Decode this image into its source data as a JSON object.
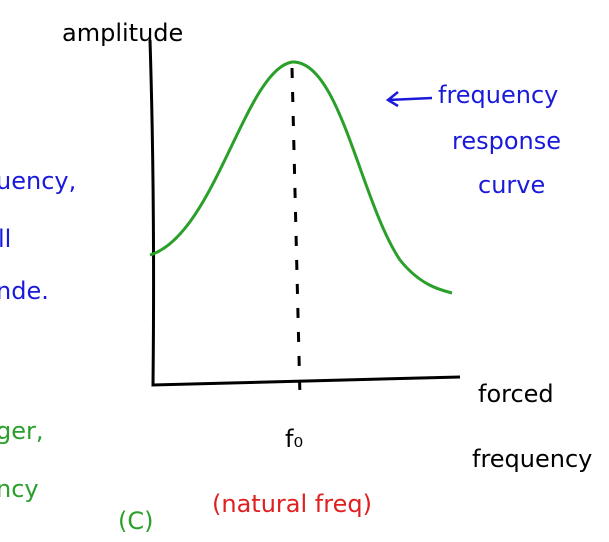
{
  "axis_labels": {
    "y": "amplitude",
    "x_line1": "forced",
    "x_line2": "frequency"
  },
  "curve_label": {
    "lines": [
      "frequency",
      "response",
      "curve"
    ]
  },
  "peak_label": "f₀",
  "natural_freq_label": "(natural freq)",
  "left_notes": {
    "blue": [
      "uency,",
      "ll",
      "nde."
    ],
    "green": [
      "ger,",
      "ncy",
      "(C)"
    ]
  }
}
